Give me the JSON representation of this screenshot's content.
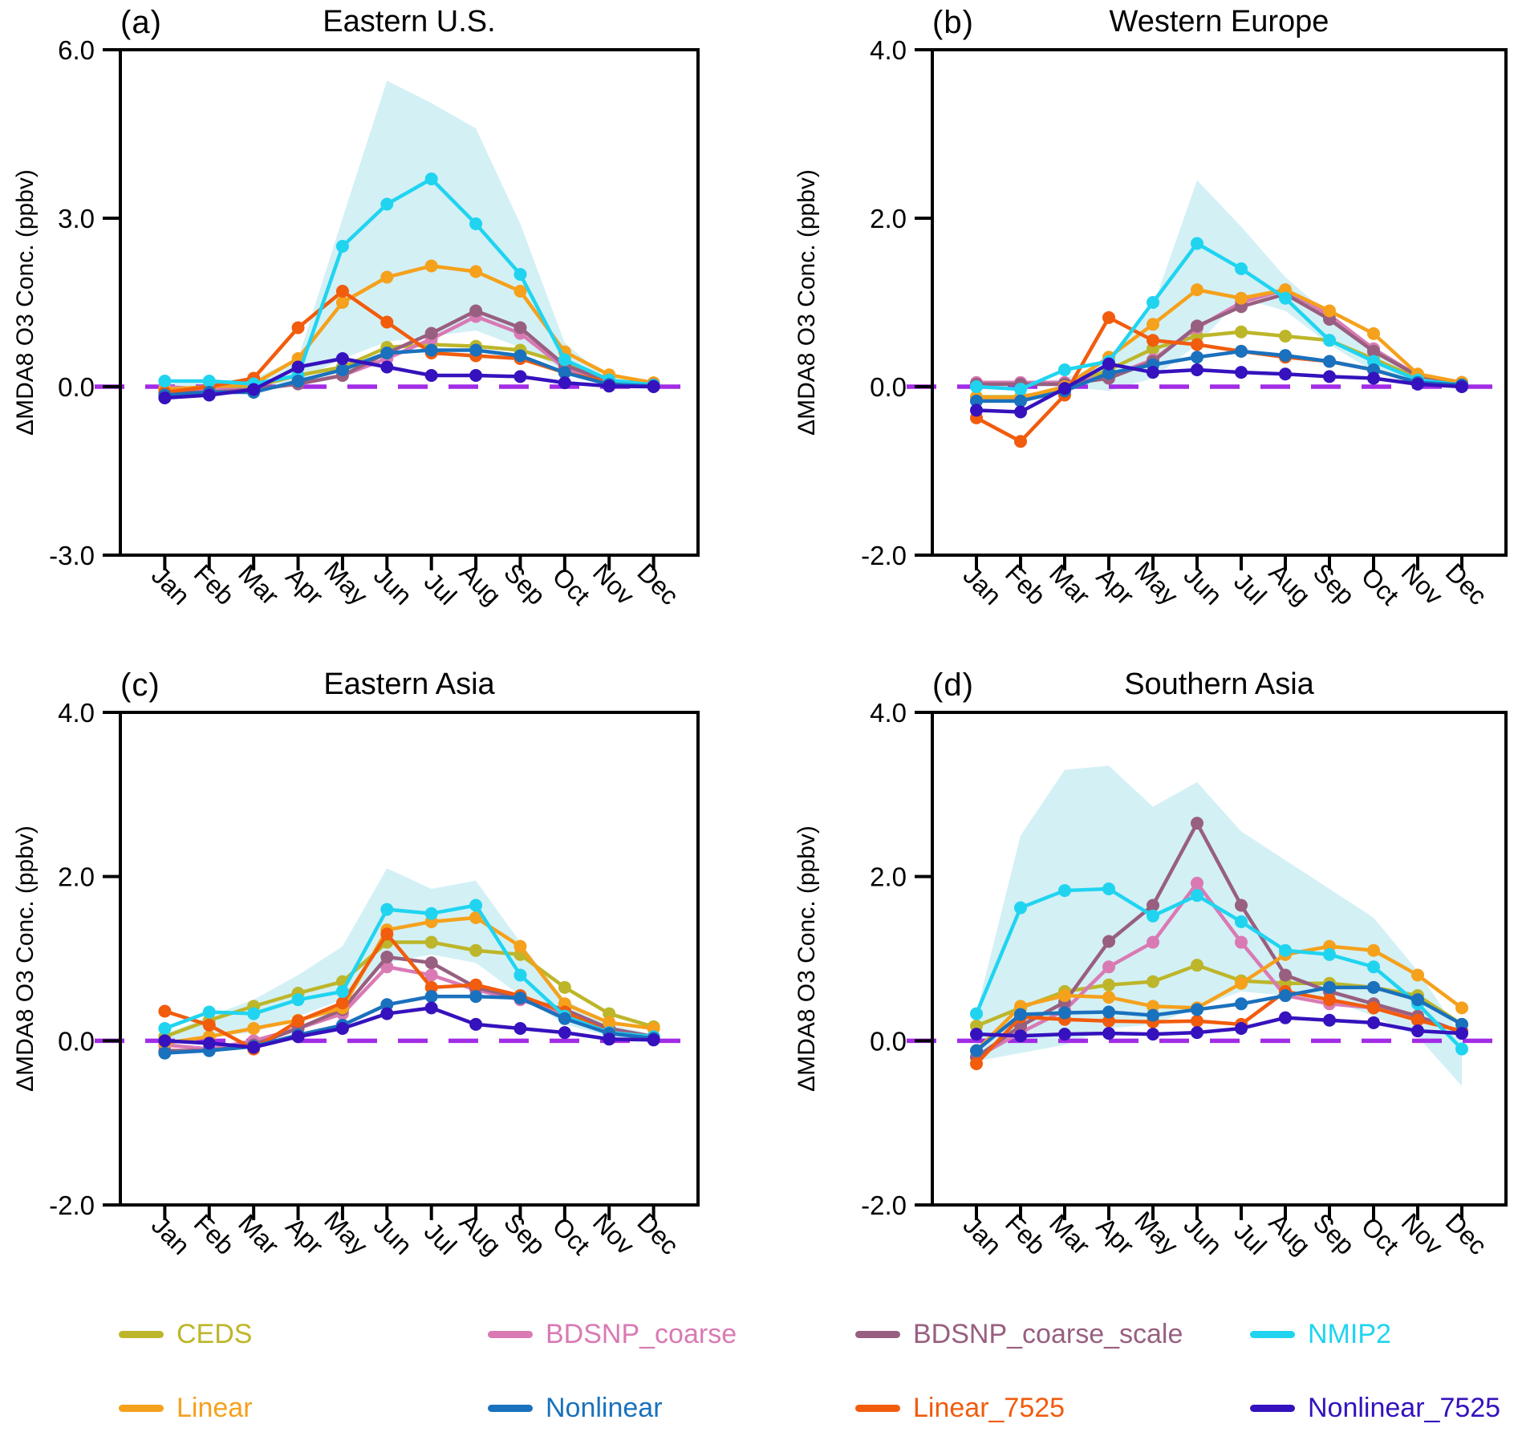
{
  "months": [
    "Jan",
    "Feb",
    "Mar",
    "Apr",
    "May",
    "Jun",
    "Jul",
    "Aug",
    "Sep",
    "Oct",
    "Nov",
    "Dec"
  ],
  "y_axis_label": "ΔMDA8 O3 Conc. (ppbv)",
  "colors": {
    "axis": "#000000",
    "zero_line": "#a22ce6",
    "shading": "#c8ecf3",
    "background": "#ffffff"
  },
  "series_colors": {
    "CEDS": "#bdb62a",
    "Linear": "#f5a11c",
    "BDSNP_coarse": "#d97ab4",
    "Nonlinear": "#1a71bd",
    "BDSNP_coarse_scale": "#985f80",
    "Linear_7525": "#f15c0d",
    "NMIP2": "#20d4f0",
    "Nonlinear_7525": "#3512bd"
  },
  "draw_order": [
    "CEDS",
    "BDSNP_coarse",
    "BDSNP_coarse_scale",
    "Linear",
    "Linear_7525",
    "NMIP2",
    "Nonlinear",
    "Nonlinear_7525"
  ],
  "legend": {
    "rows": [
      [
        {
          "label": "CEDS",
          "color": "#bdb62a"
        },
        {
          "label": "BDSNP_coarse",
          "color": "#d97ab4"
        },
        {
          "label": "BDSNP_coarse_scale",
          "color": "#985f80"
        },
        {
          "label": "NMIP2",
          "color": "#20d4f0"
        }
      ],
      [
        {
          "label": "Linear",
          "color": "#f5a11c"
        },
        {
          "label": "Nonlinear",
          "color": "#1a71bd"
        },
        {
          "label": "Linear_7525",
          "color": "#f15c0d"
        },
        {
          "label": "Nonlinear_7525",
          "color": "#3512bd"
        }
      ]
    ]
  },
  "chart_data": [
    {
      "type": "line",
      "panel_label": "(a)",
      "title": "Eastern U.S.",
      "ylabel": "ΔMDA8 O3 Conc. (ppbv)",
      "xlabel": "",
      "x_categories": [
        "Jan",
        "Feb",
        "Mar",
        "Apr",
        "May",
        "Jun",
        "Jul",
        "Aug",
        "Sep",
        "Oct",
        "Nov",
        "Dec"
      ],
      "ylim": [
        -3.0,
        6.0
      ],
      "yticks": [
        "6.0",
        "3.0",
        "0.0",
        "-3.0"
      ],
      "zero_reference_line": 0.0,
      "shading_name": "NMIP2 range",
      "shading_lower": [
        0.0,
        0.0,
        0.0,
        0.1,
        0.5,
        0.8,
        0.9,
        1.0,
        0.7,
        0.28,
        0.03,
        0.0
      ],
      "shading_upper": [
        0.05,
        0.1,
        0.15,
        0.5,
        3.0,
        5.45,
        5.05,
        4.6,
        2.9,
        0.78,
        0.12,
        0.02
      ],
      "series": [
        {
          "name": "CEDS",
          "values": [
            -0.05,
            -0.05,
            0.0,
            0.2,
            0.35,
            0.7,
            0.75,
            0.72,
            0.65,
            0.42,
            0.1,
            0.05
          ]
        },
        {
          "name": "Linear",
          "values": [
            -0.05,
            0.0,
            0.05,
            0.5,
            1.5,
            1.95,
            2.15,
            2.05,
            1.7,
            0.62,
            0.21,
            0.07
          ]
        },
        {
          "name": "BDSNP_coarse",
          "values": [
            0.0,
            -0.05,
            -0.05,
            0.05,
            0.2,
            0.5,
            0.85,
            1.25,
            0.95,
            0.33,
            0.08,
            0.04
          ]
        },
        {
          "name": "BDSNP_coarse_scale",
          "values": [
            -0.1,
            -0.1,
            -0.05,
            0.05,
            0.2,
            0.6,
            0.95,
            1.35,
            1.05,
            0.38,
            0.1,
            0.04
          ]
        },
        {
          "name": "Linear_7525",
          "values": [
            -0.1,
            0.0,
            0.15,
            1.05,
            1.7,
            1.15,
            0.6,
            0.55,
            0.5,
            0.25,
            0.08,
            0.04
          ]
        },
        {
          "name": "NMIP2",
          "values": [
            0.1,
            0.1,
            0.05,
            0.2,
            2.5,
            3.25,
            3.7,
            2.9,
            2.0,
            0.48,
            0.12,
            0.03
          ]
        },
        {
          "name": "Nonlinear",
          "values": [
            -0.15,
            -0.1,
            -0.1,
            0.1,
            0.3,
            0.6,
            0.65,
            0.65,
            0.55,
            0.25,
            0.04,
            0.01
          ]
        },
        {
          "name": "Nonlinear_7525",
          "values": [
            -0.2,
            -0.15,
            -0.05,
            0.35,
            0.5,
            0.35,
            0.2,
            0.2,
            0.18,
            0.07,
            0.01,
            0.0
          ]
        }
      ]
    },
    {
      "type": "line",
      "panel_label": "(b)",
      "title": "Western Europe",
      "ylabel": "ΔMDA8 O3 Conc. (ppbv)",
      "xlabel": "",
      "x_categories": [
        "Jan",
        "Feb",
        "Mar",
        "Apr",
        "May",
        "Jun",
        "Jul",
        "Aug",
        "Sep",
        "Oct",
        "Nov",
        "Dec"
      ],
      "ylim": [
        -2.0,
        4.0
      ],
      "yticks": [
        "4.0",
        "2.0",
        "0.0",
        "-2.0"
      ],
      "zero_reference_line": 0.0,
      "shading_name": "NMIP2 range",
      "shading_lower": [
        0.0,
        0.0,
        0.0,
        -0.05,
        0.1,
        0.5,
        1.05,
        0.9,
        0.5,
        0.18,
        0.02,
        0.0
      ],
      "shading_upper": [
        0.02,
        0.02,
        0.1,
        0.3,
        0.95,
        2.45,
        1.9,
        1.3,
        0.85,
        0.4,
        0.1,
        0.02
      ],
      "series": [
        {
          "name": "CEDS",
          "values": [
            -0.12,
            -0.12,
            -0.02,
            0.2,
            0.45,
            0.6,
            0.65,
            0.6,
            0.55,
            0.33,
            0.1,
            0.04
          ]
        },
        {
          "name": "Linear",
          "values": [
            -0.13,
            -0.13,
            0.0,
            0.35,
            0.74,
            1.15,
            1.05,
            1.15,
            0.9,
            0.63,
            0.15,
            0.05
          ]
        },
        {
          "name": "BDSNP_coarse",
          "values": [
            0.05,
            0.05,
            0.05,
            0.12,
            0.32,
            0.7,
            1.0,
            1.15,
            0.85,
            0.45,
            0.13,
            0.05
          ]
        },
        {
          "name": "BDSNP_coarse_scale",
          "values": [
            0.03,
            0.03,
            0.03,
            0.1,
            0.3,
            0.72,
            0.95,
            1.1,
            0.8,
            0.42,
            0.13,
            0.05
          ]
        },
        {
          "name": "Linear_7525",
          "values": [
            -0.37,
            -0.65,
            -0.1,
            0.82,
            0.55,
            0.5,
            0.42,
            0.35,
            0.3,
            0.2,
            0.05,
            0.02
          ]
        },
        {
          "name": "NMIP2",
          "values": [
            0.0,
            -0.03,
            0.2,
            0.3,
            1.0,
            1.7,
            1.4,
            1.05,
            0.55,
            0.3,
            0.08,
            0.02
          ]
        },
        {
          "name": "Nonlinear",
          "values": [
            -0.17,
            -0.17,
            -0.05,
            0.16,
            0.26,
            0.35,
            0.42,
            0.37,
            0.3,
            0.2,
            0.05,
            0.02
          ]
        },
        {
          "name": "Nonlinear_7525",
          "values": [
            -0.28,
            -0.3,
            -0.02,
            0.27,
            0.17,
            0.2,
            0.17,
            0.15,
            0.12,
            0.1,
            0.03,
            0.0
          ]
        }
      ]
    },
    {
      "type": "line",
      "panel_label": "(c)",
      "title": "Eastern Asia",
      "ylabel": "ΔMDA8 O3 Conc. (ppbv)",
      "xlabel": "",
      "x_categories": [
        "Jan",
        "Feb",
        "Mar",
        "Apr",
        "May",
        "Jun",
        "Jul",
        "Aug",
        "Sep",
        "Oct",
        "Nov",
        "Dec"
      ],
      "ylim": [
        -2.0,
        4.0
      ],
      "yticks": [
        "4.0",
        "2.0",
        "0.0",
        "-2.0"
      ],
      "zero_reference_line": 0.0,
      "shading_name": "NMIP2 range",
      "shading_lower": [
        0.0,
        0.05,
        0.1,
        0.3,
        0.5,
        0.95,
        1.05,
        0.95,
        0.55,
        0.2,
        0.05,
        0.0
      ],
      "shading_upper": [
        0.08,
        0.3,
        0.5,
        0.8,
        1.15,
        2.1,
        1.85,
        1.95,
        1.2,
        0.5,
        0.2,
        0.08
      ],
      "series": [
        {
          "name": "CEDS",
          "values": [
            0.05,
            0.25,
            0.42,
            0.58,
            0.72,
            1.2,
            1.2,
            1.1,
            1.05,
            0.65,
            0.33,
            0.17
          ]
        },
        {
          "name": "Linear",
          "values": [
            -0.03,
            0.05,
            0.15,
            0.25,
            0.4,
            1.35,
            1.45,
            1.5,
            1.15,
            0.45,
            0.22,
            0.15
          ]
        },
        {
          "name": "BDSNP_coarse",
          "values": [
            -0.05,
            -0.1,
            0.0,
            0.15,
            0.33,
            0.9,
            0.8,
            0.62,
            0.5,
            0.33,
            0.13,
            0.05
          ]
        },
        {
          "name": "BDSNP_coarse_scale",
          "values": [
            -0.12,
            -0.12,
            -0.05,
            0.15,
            0.38,
            1.02,
            0.95,
            0.65,
            0.52,
            0.38,
            0.15,
            0.05
          ]
        },
        {
          "name": "Linear_7525",
          "values": [
            0.36,
            0.19,
            -0.1,
            0.24,
            0.46,
            1.3,
            0.65,
            0.68,
            0.55,
            0.35,
            0.1,
            0.05
          ]
        },
        {
          "name": "NMIP2",
          "values": [
            0.15,
            0.35,
            0.33,
            0.5,
            0.6,
            1.6,
            1.55,
            1.65,
            0.8,
            0.3,
            0.1,
            0.05
          ]
        },
        {
          "name": "Nonlinear",
          "values": [
            -0.15,
            -0.12,
            -0.07,
            0.07,
            0.19,
            0.44,
            0.54,
            0.54,
            0.52,
            0.27,
            0.09,
            0.03
          ]
        },
        {
          "name": "Nonlinear_7525",
          "values": [
            0.0,
            -0.03,
            -0.08,
            0.05,
            0.15,
            0.33,
            0.4,
            0.2,
            0.15,
            0.1,
            0.02,
            0.01
          ]
        }
      ]
    },
    {
      "type": "line",
      "panel_label": "(d)",
      "title": "Southern Asia",
      "ylabel": "ΔMDA8 O3 Conc. (ppbv)",
      "xlabel": "",
      "x_categories": [
        "Jan",
        "Feb",
        "Mar",
        "Apr",
        "May",
        "Jun",
        "Jul",
        "Aug",
        "Sep",
        "Oct",
        "Nov",
        "Dec"
      ],
      "ylim": [
        -2.0,
        4.0
      ],
      "yticks": [
        "4.0",
        "2.0",
        "0.0",
        "-2.0"
      ],
      "zero_reference_line": 0.0,
      "shading_name": "NMIP2 range",
      "shading_lower": [
        -0.25,
        -0.15,
        -0.05,
        0.15,
        0.2,
        0.4,
        0.6,
        0.55,
        0.5,
        0.3,
        0.05,
        -0.55
      ],
      "shading_upper": [
        0.35,
        2.5,
        3.3,
        3.35,
        2.85,
        3.15,
        2.55,
        2.2,
        1.85,
        1.5,
        0.85,
        0.05
      ],
      "series": [
        {
          "name": "CEDS",
          "values": [
            0.18,
            0.4,
            0.6,
            0.68,
            0.72,
            0.92,
            0.73,
            0.7,
            0.7,
            0.65,
            0.55,
            0.2
          ]
        },
        {
          "name": "Linear",
          "values": [
            -0.12,
            0.42,
            0.55,
            0.53,
            0.42,
            0.4,
            0.7,
            1.05,
            1.15,
            1.1,
            0.8,
            0.4
          ]
        },
        {
          "name": "BDSNP_coarse",
          "values": [
            -0.2,
            0.1,
            0.37,
            0.9,
            1.2,
            1.92,
            1.2,
            0.55,
            0.45,
            0.4,
            0.3,
            0.1
          ]
        },
        {
          "name": "BDSNP_coarse_scale",
          "values": [
            -0.2,
            0.18,
            0.47,
            1.21,
            1.65,
            2.65,
            1.65,
            0.8,
            0.6,
            0.45,
            0.3,
            0.1
          ]
        },
        {
          "name": "Linear_7525",
          "values": [
            -0.28,
            0.29,
            0.26,
            0.24,
            0.23,
            0.24,
            0.2,
            0.6,
            0.5,
            0.4,
            0.25,
            0.12
          ]
        },
        {
          "name": "NMIP2",
          "values": [
            0.33,
            1.62,
            1.83,
            1.85,
            1.52,
            1.77,
            1.45,
            1.1,
            1.05,
            0.9,
            0.45,
            -0.1
          ]
        },
        {
          "name": "Nonlinear",
          "values": [
            -0.12,
            0.32,
            0.34,
            0.35,
            0.31,
            0.38,
            0.45,
            0.55,
            0.65,
            0.65,
            0.5,
            0.2
          ]
        },
        {
          "name": "Nonlinear_7525",
          "values": [
            0.08,
            0.06,
            0.08,
            0.09,
            0.08,
            0.1,
            0.15,
            0.28,
            0.25,
            0.22,
            0.12,
            0.09
          ]
        }
      ]
    }
  ]
}
